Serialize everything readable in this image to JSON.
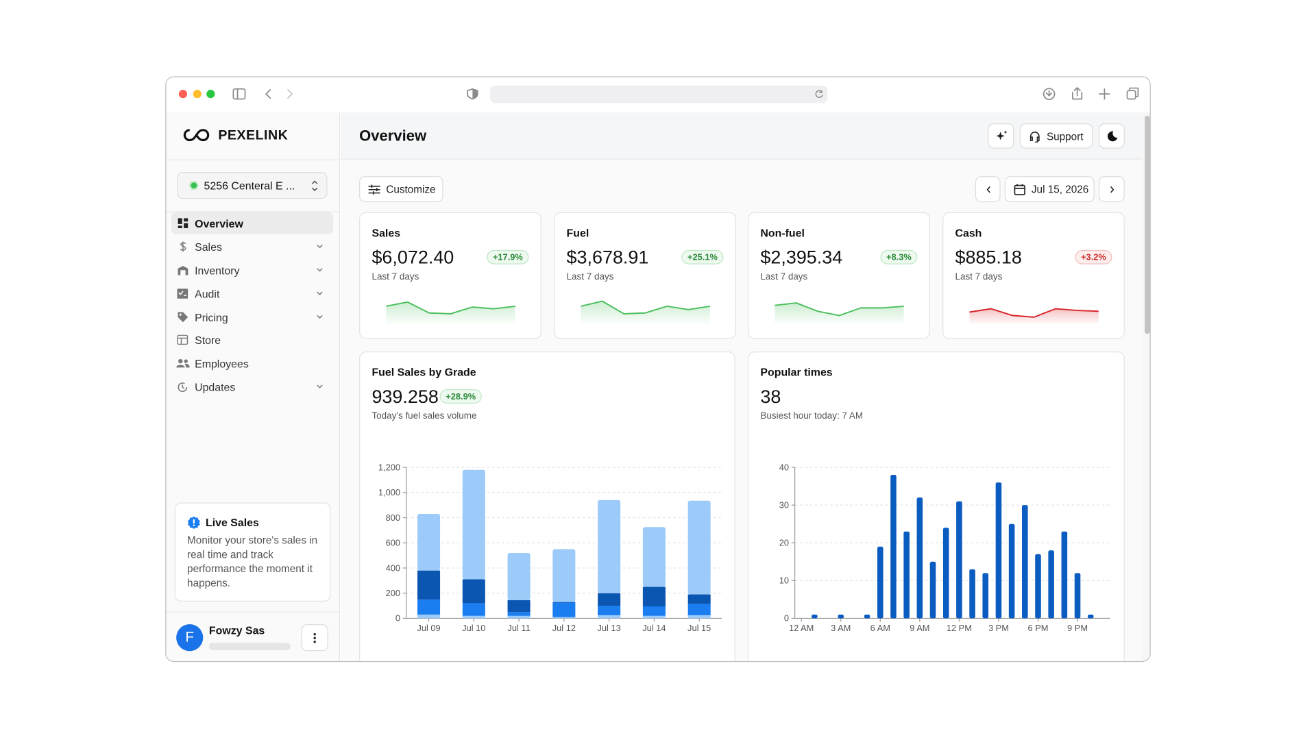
{
  "sidebar": {
    "brand": "PEXELINK",
    "store": "5256 Centeral E ...",
    "nav": [
      "Overview",
      "Sales",
      "Inventory",
      "Audit",
      "Pricing",
      "Store",
      "Employees",
      "Updates"
    ],
    "live_sales": {
      "title": "Live Sales",
      "text": "Monitor your store's sales in real time and track performance the moment it happens."
    },
    "user": {
      "initial": "F",
      "name": "Fowzy Sas"
    }
  },
  "header": {
    "title": "Overview",
    "support": "Support"
  },
  "toolbar": {
    "customize": "Customize",
    "date": "Jul 15, 2026"
  },
  "cards": [
    {
      "title": "Sales",
      "value": "$6,072.40",
      "change": "+17.9%",
      "period": "Last 7 days",
      "trend": [
        17,
        22,
        9,
        8,
        16,
        14,
        17
      ],
      "color": "#4cbf5e"
    },
    {
      "title": "Fuel",
      "value": "$3,678.91",
      "change": "+25.1%",
      "period": "Last 7 days",
      "trend": [
        17,
        23,
        8,
        9,
        17,
        13,
        17
      ],
      "color": "#4cbf5e"
    },
    {
      "title": "Non-fuel",
      "value": "$2,395.34",
      "change": "+8.3%",
      "period": "Last 7 days",
      "trend": [
        18,
        21,
        11,
        6,
        15,
        15,
        17
      ],
      "color": "#4cbf5e"
    },
    {
      "title": "Cash",
      "value": "$885.18",
      "change": "+3.2%",
      "period": "Last 7 days",
      "trend": [
        10,
        14,
        6,
        4,
        14,
        12,
        11
      ],
      "color": "#d8262b"
    }
  ],
  "fuel_chart": {
    "type": "bar",
    "title": "Fuel Sales by Grade",
    "value": "939.258",
    "change": "+28.9%",
    "subtitle": "Today's fuel sales volume",
    "categories": [
      "Jul 09",
      "Jul 10",
      "Jul 11",
      "Jul 12",
      "Jul 13",
      "Jul 14",
      "Jul 15"
    ],
    "series": [
      {
        "color": "#9ccbf9",
        "values": [
          30,
          20,
          20,
          10,
          25,
          20,
          25
        ]
      },
      {
        "color": "#1a7df0",
        "values": [
          120,
          100,
          30,
          115,
          75,
          75,
          90
        ]
      },
      {
        "color": "#0b56b1",
        "values": [
          230,
          190,
          95,
          5,
          100,
          155,
          75
        ]
      },
      {
        "color": "#9ccbf9",
        "values": [
          450,
          870,
          375,
          420,
          740,
          475,
          745
        ]
      }
    ],
    "ylim": [
      0,
      1200
    ],
    "yticks": [
      0,
      200,
      400,
      600,
      800,
      {
        "value": 1000,
        "label": "1,000"
      },
      {
        "value": 1200,
        "label": "1,200"
      }
    ],
    "grid": true
  },
  "popular_chart": {
    "type": "bar",
    "title": "Popular times",
    "value": "38",
    "subtitle": "Busiest hour today: 7 AM",
    "categories": [
      "12 AM",
      null,
      null,
      "3 AM",
      null,
      null,
      "6 AM",
      null,
      null,
      "9 AM",
      null,
      null,
      "12 PM",
      null,
      null,
      "3 PM",
      null,
      null,
      "6 PM",
      null,
      null,
      "9 PM",
      null,
      null
    ],
    "values": [
      0,
      1,
      0,
      1,
      0,
      1,
      19,
      38,
      23,
      32,
      15,
      24,
      31,
      13,
      12,
      36,
      25,
      30,
      17,
      18,
      23,
      12,
      1,
      0
    ],
    "color": "#0b5cc0",
    "ylim": [
      0,
      40
    ],
    "yticks": [
      0,
      10,
      20,
      30,
      40
    ],
    "grid": true
  }
}
